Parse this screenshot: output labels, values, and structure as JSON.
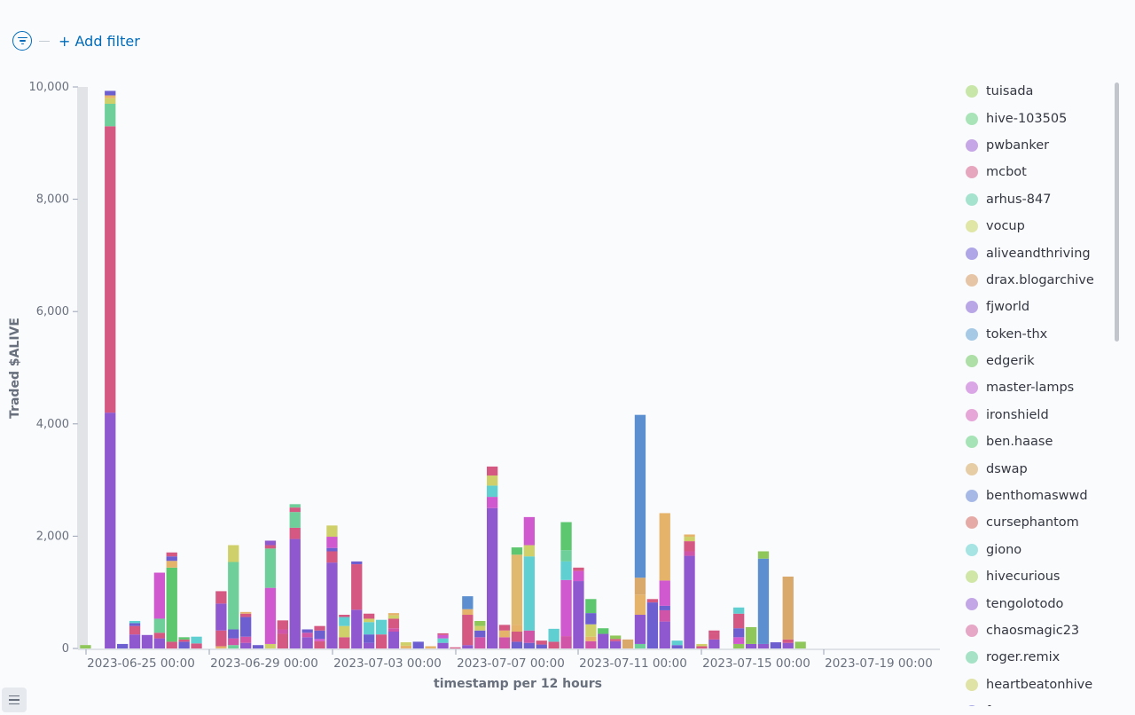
{
  "toolbar": {
    "filter_icon": "filter-icon",
    "add_filter_label": "+ Add filter"
  },
  "chart_data": {
    "type": "bar",
    "stacked": true,
    "xlabel": "timestamp per 12 hours",
    "ylabel": "Traded $ALIVE",
    "ylim": [
      0,
      10000
    ],
    "yticks": [
      0,
      2000,
      4000,
      6000,
      8000,
      10000
    ],
    "ytick_labels": [
      "0",
      "2,000",
      "4,000",
      "6,000",
      "8,000",
      "10,000"
    ],
    "xtick_labels": [
      "2023-06-25 00:00",
      "2023-06-29 00:00",
      "2023-07-03 00:00",
      "2023-07-07 00:00",
      "2023-07-11 00:00",
      "2023-07-15 00:00",
      "2023-07-19 00:00"
    ],
    "bar_count": 58,
    "bars": [
      {
        "i": 0,
        "s": [
          [
            "#8fc75a",
            60
          ]
        ]
      },
      {
        "i": 2,
        "s": [
          [
            "#9058cf",
            4200
          ],
          [
            "#d55882",
            5100
          ],
          [
            "#6ecf9b",
            400
          ],
          [
            "#cfd06a",
            100
          ],
          [
            "#e6b36b",
            50
          ],
          [
            "#6e5fd1",
            80
          ]
        ]
      },
      {
        "i": 3,
        "s": [
          [
            "#6e5fd1",
            80
          ]
        ]
      },
      {
        "i": 4,
        "s": [
          [
            "#9058cf",
            250
          ],
          [
            "#d55882",
            150
          ],
          [
            "#6e5fd1",
            50
          ],
          [
            "#5fcfd1",
            40
          ]
        ]
      },
      {
        "i": 5,
        "s": [
          [
            "#9058cf",
            240
          ]
        ]
      },
      {
        "i": 6,
        "s": [
          [
            "#9058cf",
            180
          ],
          [
            "#d55882",
            100
          ],
          [
            "#6ecf9b",
            250
          ],
          [
            "#d059cf",
            820
          ]
        ]
      },
      {
        "i": 7,
        "s": [
          [
            "#d55882",
            120
          ],
          [
            "#5cc76e",
            1320
          ],
          [
            "#e6b36b",
            120
          ],
          [
            "#6e5fd1",
            80
          ],
          [
            "#d55882",
            70
          ]
        ]
      },
      {
        "i": 8,
        "s": [
          [
            "#6e5fd1",
            120
          ],
          [
            "#d55882",
            40
          ],
          [
            "#5cc76e",
            40
          ]
        ]
      },
      {
        "i": 9,
        "s": [
          [
            "#d55882",
            90
          ],
          [
            "#5fcfd1",
            120
          ]
        ]
      },
      {
        "i": 11,
        "s": [
          [
            "#e6b36b",
            40
          ],
          [
            "#d55882",
            280
          ],
          [
            "#9058cf",
            480
          ],
          [
            "#d55882",
            220
          ]
        ]
      },
      {
        "i": 12,
        "s": [
          [
            "#6ecf9b",
            60
          ],
          [
            "#d055a8",
            120
          ],
          [
            "#6e5fd1",
            160
          ],
          [
            "#6ecf9b",
            1200
          ],
          [
            "#cfd06a",
            300
          ]
        ]
      },
      {
        "i": 13,
        "s": [
          [
            "#9058cf",
            100
          ],
          [
            "#d055a8",
            110
          ],
          [
            "#6e5fd1",
            350
          ],
          [
            "#d55882",
            60
          ],
          [
            "#e6b36b",
            30
          ]
        ]
      },
      {
        "i": 14,
        "s": [
          [
            "#6e5fd1",
            60
          ]
        ]
      },
      {
        "i": 15,
        "s": [
          [
            "#cfd06a",
            80
          ],
          [
            "#d059cf",
            1000
          ],
          [
            "#6ecf9b",
            700
          ],
          [
            "#d55882",
            60
          ],
          [
            "#9058cf",
            80
          ]
        ]
      },
      {
        "i": 16,
        "s": [
          [
            "#d55882",
            260
          ],
          [
            "#d055a8",
            80
          ],
          [
            "#d55882",
            160
          ]
        ]
      },
      {
        "i": 17,
        "s": [
          [
            "#9058cf",
            1950
          ],
          [
            "#d55882",
            200
          ],
          [
            "#6ecf9b",
            280
          ],
          [
            "#d55882",
            80
          ],
          [
            "#6ecf9b",
            60
          ]
        ]
      },
      {
        "i": 18,
        "s": [
          [
            "#9058cf",
            200
          ],
          [
            "#d055a8",
            80
          ],
          [
            "#6e5fd1",
            60
          ]
        ]
      },
      {
        "i": 19,
        "s": [
          [
            "#d55882",
            130
          ],
          [
            "#d059cf",
            40
          ],
          [
            "#6e5fd1",
            150
          ],
          [
            "#d55882",
            80
          ]
        ]
      },
      {
        "i": 20,
        "s": [
          [
            "#9058cf",
            1530
          ],
          [
            "#d55882",
            200
          ],
          [
            "#6e5fd1",
            60
          ],
          [
            "#d059cf",
            200
          ],
          [
            "#cfd06a",
            200
          ]
        ]
      },
      {
        "i": 21,
        "s": [
          [
            "#d55882",
            200
          ],
          [
            "#cfd06a",
            200
          ],
          [
            "#5fcfd1",
            160
          ],
          [
            "#d55882",
            40
          ]
        ]
      },
      {
        "i": 22,
        "s": [
          [
            "#9058cf",
            690
          ],
          [
            "#d55882",
            810
          ],
          [
            "#6e5fd1",
            50
          ]
        ]
      },
      {
        "i": 23,
        "s": [
          [
            "#9058cf",
            100
          ],
          [
            "#6e5fd1",
            150
          ],
          [
            "#5fcfd1",
            220
          ],
          [
            "#cfd06a",
            60
          ],
          [
            "#d55882",
            90
          ]
        ]
      },
      {
        "i": 24,
        "s": [
          [
            "#d55882",
            250
          ],
          [
            "#5fcfd1",
            260
          ]
        ]
      },
      {
        "i": 25,
        "s": [
          [
            "#9058cf",
            300
          ],
          [
            "#d055a8",
            60
          ],
          [
            "#d55882",
            170
          ],
          [
            "#cfd06a",
            60
          ],
          [
            "#e6b36b",
            40
          ]
        ]
      },
      {
        "i": 26,
        "s": [
          [
            "#e6b36b",
            50
          ],
          [
            "#cfd06a",
            60
          ]
        ]
      },
      {
        "i": 27,
        "s": [
          [
            "#6e5fd1",
            120
          ]
        ]
      },
      {
        "i": 28,
        "s": [
          [
            "#e6b36b",
            40
          ]
        ]
      },
      {
        "i": 29,
        "s": [
          [
            "#9058cf",
            100
          ],
          [
            "#5fcfd1",
            80
          ],
          [
            "#d059cf",
            60
          ],
          [
            "#d55882",
            30
          ]
        ]
      },
      {
        "i": 30,
        "s": [
          [
            "#d55882",
            20
          ]
        ]
      },
      {
        "i": 31,
        "s": [
          [
            "#9058cf",
            60
          ],
          [
            "#d55882",
            540
          ],
          [
            "#e6b36b",
            100
          ],
          [
            "#5b8fcf",
            230
          ]
        ]
      },
      {
        "i": 32,
        "s": [
          [
            "#d055a8",
            200
          ],
          [
            "#6e5fd1",
            120
          ],
          [
            "#cfd06a",
            80
          ],
          [
            "#8fc75a",
            90
          ]
        ]
      },
      {
        "i": 33,
        "s": [
          [
            "#9058cf",
            2500
          ],
          [
            "#d059cf",
            200
          ],
          [
            "#5fcfd1",
            200
          ],
          [
            "#cfd06a",
            180
          ],
          [
            "#d55882",
            160
          ]
        ]
      },
      {
        "i": 34,
        "s": [
          [
            "#d055a8",
            200
          ],
          [
            "#e6b36b",
            120
          ],
          [
            "#d55882",
            100
          ]
        ]
      },
      {
        "i": 35,
        "s": [
          [
            "#6e5fd1",
            120
          ],
          [
            "#d55882",
            180
          ],
          [
            "#e6b36b",
            120
          ],
          [
            "#e0b86e",
            1250
          ],
          [
            "#5cc76e",
            130
          ]
        ]
      },
      {
        "i": 36,
        "s": [
          [
            "#6e5fd1",
            100
          ],
          [
            "#d055a8",
            220
          ],
          [
            "#5fcfd1",
            1320
          ],
          [
            "#cfd06a",
            200
          ],
          [
            "#d059cf",
            500
          ]
        ]
      },
      {
        "i": 37,
        "s": [
          [
            "#6e5fd1",
            70
          ],
          [
            "#d55882",
            70
          ]
        ]
      },
      {
        "i": 38,
        "s": [
          [
            "#d55882",
            120
          ],
          [
            "#5fcfd1",
            230
          ]
        ]
      },
      {
        "i": 39,
        "s": [
          [
            "#d055a8",
            220
          ],
          [
            "#d059cf",
            1000
          ],
          [
            "#5fcfd1",
            330
          ],
          [
            "#6ecf9b",
            200
          ],
          [
            "#5cc76e",
            500
          ]
        ]
      },
      {
        "i": 40,
        "s": [
          [
            "#9058cf",
            1200
          ],
          [
            "#d059cf",
            180
          ],
          [
            "#d55882",
            60
          ]
        ]
      },
      {
        "i": 41,
        "s": [
          [
            "#d055a8",
            130
          ],
          [
            "#e6b36b",
            80
          ],
          [
            "#cfd06a",
            220
          ],
          [
            "#6e5fd1",
            200
          ],
          [
            "#5cc76e",
            250
          ]
        ]
      },
      {
        "i": 42,
        "s": [
          [
            "#9058cf",
            260
          ],
          [
            "#5cc76e",
            100
          ]
        ]
      },
      {
        "i": 43,
        "s": [
          [
            "#9058cf",
            130
          ],
          [
            "#d55882",
            40
          ],
          [
            "#8fc75a",
            60
          ]
        ]
      },
      {
        "i": 44,
        "s": [
          [
            "#d9a86b",
            160
          ]
        ]
      },
      {
        "i": 45,
        "s": [
          [
            "#6ecf9b",
            80
          ],
          [
            "#9058cf",
            520
          ],
          [
            "#e6b36b",
            360
          ],
          [
            "#d9a86b",
            300
          ],
          [
            "#5b8fcf",
            2900
          ]
        ]
      },
      {
        "i": 46,
        "s": [
          [
            "#6e5fd1",
            820
          ],
          [
            "#d55882",
            60
          ]
        ]
      },
      {
        "i": 47,
        "s": [
          [
            "#9058cf",
            480
          ],
          [
            "#d055a8",
            200
          ],
          [
            "#6e5fd1",
            80
          ],
          [
            "#d059cf",
            450
          ],
          [
            "#e6b36b",
            1200
          ]
        ]
      },
      {
        "i": 48,
        "s": [
          [
            "#6e5fd1",
            60
          ],
          [
            "#5fcfd1",
            80
          ]
        ]
      },
      {
        "i": 49,
        "s": [
          [
            "#9058cf",
            1650
          ],
          [
            "#d055a8",
            80
          ],
          [
            "#d55882",
            180
          ],
          [
            "#cfd06a",
            80
          ],
          [
            "#e6b36b",
            40
          ]
        ]
      },
      {
        "i": 50,
        "s": [
          [
            "#d55882",
            40
          ],
          [
            "#cfd06a",
            40
          ]
        ]
      },
      {
        "i": 51,
        "s": [
          [
            "#9058cf",
            160
          ],
          [
            "#d55882",
            100
          ],
          [
            "#d55882",
            60
          ]
        ]
      },
      {
        "i": 53,
        "s": [
          [
            "#8fc75a",
            80
          ],
          [
            "#d059cf",
            120
          ],
          [
            "#6e5fd1",
            160
          ],
          [
            "#d55882",
            260
          ],
          [
            "#5fcfd1",
            110
          ]
        ]
      },
      {
        "i": 54,
        "s": [
          [
            "#9058cf",
            80
          ],
          [
            "#8fc75a",
            300
          ]
        ]
      },
      {
        "i": 55,
        "s": [
          [
            "#9058cf",
            80
          ],
          [
            "#5b8fcf",
            1520
          ],
          [
            "#8fc75a",
            130
          ]
        ]
      },
      {
        "i": 56,
        "s": [
          [
            "#6e5fd1",
            110
          ]
        ]
      },
      {
        "i": 57,
        "s": [
          [
            "#9058cf",
            100
          ],
          [
            "#d55882",
            60
          ],
          [
            "#d9a86b",
            1120
          ]
        ]
      },
      {
        "i": 58,
        "s": [
          [
            "#8fc75a",
            120
          ]
        ]
      }
    ],
    "legend_position": "right",
    "legend": [
      {
        "name": "tuisada",
        "color": "#c8e6a8"
      },
      {
        "name": "hive-103505",
        "color": "#a9e3b8"
      },
      {
        "name": "pwbanker",
        "color": "#c6a6e6"
      },
      {
        "name": "mcbot",
        "color": "#e6a6bd"
      },
      {
        "name": "arhus-847",
        "color": "#a6e3cf"
      },
      {
        "name": "vocup",
        "color": "#dfe6a6"
      },
      {
        "name": "aliveandthriving",
        "color": "#aea6e6"
      },
      {
        "name": "drax.blogarchive",
        "color": "#e6c4a6"
      },
      {
        "name": "fjworld",
        "color": "#b9a6e6"
      },
      {
        "name": "token-thx",
        "color": "#a6c9e6"
      },
      {
        "name": "edgerik",
        "color": "#addfa6"
      },
      {
        "name": "master-lamps",
        "color": "#dba6e6"
      },
      {
        "name": "ironshield",
        "color": "#e6a6d7"
      },
      {
        "name": "ben.haase",
        "color": "#a6e3b6"
      },
      {
        "name": "dswap",
        "color": "#e6cda6"
      },
      {
        "name": "benthomaswwd",
        "color": "#a6b9e6"
      },
      {
        "name": "cursephantom",
        "color": "#e6aaa6"
      },
      {
        "name": "giono",
        "color": "#a6e3e3"
      },
      {
        "name": "hivecurious",
        "color": "#cfe6a6"
      },
      {
        "name": "tengolotodo",
        "color": "#c3a6e6"
      },
      {
        "name": "chaosmagic23",
        "color": "#e6a6c6"
      },
      {
        "name": "roger.remix",
        "color": "#a6e3c6"
      },
      {
        "name": "heartbeatonhive",
        "color": "#e0e3a6"
      },
      {
        "name": "f...",
        "color": "#a6a6e6"
      }
    ]
  }
}
